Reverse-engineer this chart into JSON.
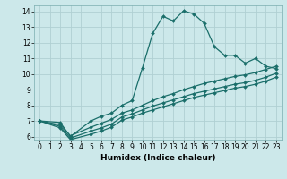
{
  "xlabel": "Humidex (Indice chaleur)",
  "bg_color": "#cce8ea",
  "grid_color": "#b0d0d3",
  "line_color": "#1a6e6a",
  "xlim": [
    -0.5,
    23.5
  ],
  "ylim": [
    5.8,
    14.4
  ],
  "xticks": [
    0,
    1,
    2,
    3,
    4,
    5,
    6,
    7,
    8,
    9,
    10,
    11,
    12,
    13,
    14,
    15,
    16,
    17,
    18,
    19,
    20,
    21,
    22,
    23
  ],
  "yticks": [
    6,
    7,
    8,
    9,
    10,
    11,
    12,
    13,
    14
  ],
  "lines": [
    {
      "x": [
        0,
        2,
        3,
        5,
        6,
        7,
        8,
        9,
        10,
        11,
        12,
        13,
        14,
        15,
        16,
        17,
        18,
        19,
        20,
        21,
        22,
        23
      ],
      "y": [
        7,
        6.9,
        6.0,
        7.0,
        7.3,
        7.5,
        8.0,
        8.3,
        10.4,
        12.6,
        13.7,
        13.4,
        14.05,
        13.85,
        13.25,
        11.75,
        11.2,
        11.2,
        10.7,
        11.0,
        10.5,
        10.35
      ]
    },
    {
      "x": [
        0,
        2,
        3,
        5,
        6,
        7,
        8,
        9,
        10,
        11,
        12,
        13,
        14,
        15,
        16,
        17,
        18,
        19,
        20,
        21,
        22,
        23
      ],
      "y": [
        7,
        6.75,
        6.05,
        6.6,
        6.85,
        7.1,
        7.5,
        7.7,
        8.0,
        8.3,
        8.55,
        8.75,
        9.0,
        9.2,
        9.4,
        9.55,
        9.7,
        9.85,
        9.95,
        10.1,
        10.3,
        10.5
      ]
    },
    {
      "x": [
        0,
        2,
        3,
        5,
        6,
        7,
        8,
        9,
        10,
        11,
        12,
        13,
        14,
        15,
        16,
        17,
        18,
        19,
        20,
        21,
        22,
        23
      ],
      "y": [
        7,
        6.65,
        5.9,
        6.35,
        6.55,
        6.8,
        7.25,
        7.45,
        7.7,
        7.95,
        8.15,
        8.35,
        8.55,
        8.75,
        8.9,
        9.05,
        9.2,
        9.35,
        9.45,
        9.6,
        9.8,
        10.05
      ]
    },
    {
      "x": [
        0,
        2,
        3,
        5,
        6,
        7,
        8,
        9,
        10,
        11,
        12,
        13,
        14,
        15,
        16,
        17,
        18,
        19,
        20,
        21,
        22,
        23
      ],
      "y": [
        7,
        6.55,
        5.8,
        6.15,
        6.35,
        6.6,
        7.05,
        7.25,
        7.5,
        7.7,
        7.9,
        8.1,
        8.3,
        8.5,
        8.65,
        8.8,
        8.95,
        9.1,
        9.2,
        9.35,
        9.55,
        9.8
      ]
    }
  ]
}
